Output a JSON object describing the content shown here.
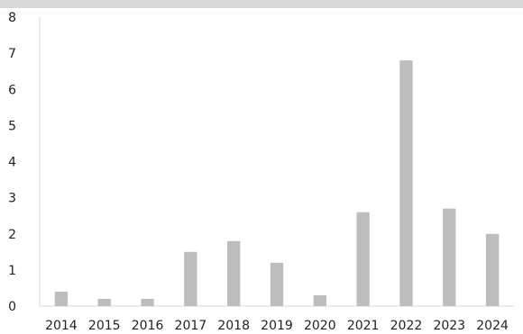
{
  "chart_data": {
    "type": "bar",
    "title": "",
    "xlabel": "",
    "ylabel": "",
    "categories": [
      "2014",
      "2015",
      "2016",
      "2017",
      "2018",
      "2019",
      "2020",
      "2021",
      "2022",
      "2023",
      "2024"
    ],
    "values": [
      0.4,
      0.2,
      0.2,
      1.5,
      1.8,
      1.2,
      0.3,
      2.6,
      6.8,
      2.7,
      2.0
    ],
    "ylim": [
      0,
      8
    ],
    "yticks": [
      "0",
      "1",
      "2",
      "3",
      "4",
      "5",
      "6",
      "7",
      "8"
    ],
    "grid": false,
    "legend": "none",
    "colors": {
      "bar": "#bdbdbd",
      "axis": "#d9d9d9",
      "top_band": "#d9d9d9",
      "text": "#222222"
    }
  }
}
